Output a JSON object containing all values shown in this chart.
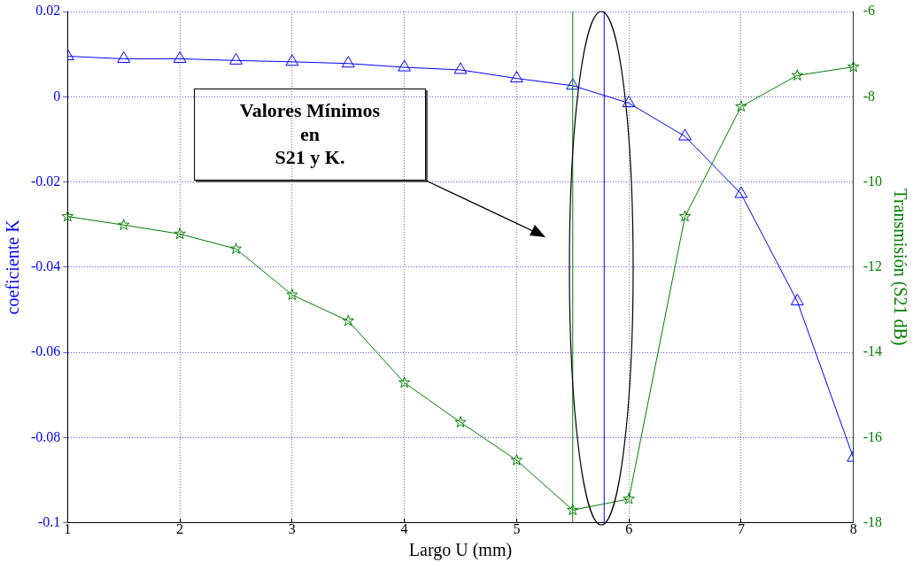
{
  "chart_data": {
    "type": "line",
    "xlabel": "Largo U (mm)",
    "ylabel": "coeficiente K",
    "y2label": "Transmisión (S21 dB)",
    "annotations": [
      "Valores Mínimos\nen\nS21 y K."
    ],
    "x": [
      1,
      1.5,
      2,
      2.5,
      3,
      3.5,
      4,
      4.5,
      5,
      5.5,
      6,
      6.5,
      7,
      7.5,
      8
    ],
    "series": [
      {
        "color": "#0000ff",
        "marker": "triangle",
        "values": [
          0.0095,
          0.0089,
          0.0089,
          0.0085,
          0.0082,
          0.0078,
          0.0069,
          0.0063,
          0.0043,
          0.0026,
          -0.0015,
          -0.0093,
          -0.0228,
          -0.048,
          -0.0847
        ]
      },
      {
        "color": "#008000",
        "marker": "star",
        "axis": "y2",
        "values": [
          -10.81,
          -11.01,
          -11.22,
          -11.57,
          -12.65,
          -13.26,
          -14.71,
          -15.64,
          -16.53,
          -17.7,
          -17.44,
          -10.81,
          -8.23,
          -7.5,
          -7.3
        ]
      }
    ],
    "xlim": [
      1,
      8
    ],
    "xticks": [
      1,
      2,
      3,
      4,
      5,
      6,
      7,
      8
    ],
    "ylim": [
      -0.1,
      0.02
    ],
    "yticks": [
      -0.1,
      -0.08,
      -0.06,
      -0.04,
      -0.02,
      0,
      0.02
    ],
    "y2lim": [
      -18,
      -6
    ],
    "y2ticks": [
      -18,
      -16,
      -14,
      -12,
      -10,
      -8,
      -6
    ],
    "grid": true,
    "ref_lines": [
      {
        "axis": "x",
        "value": 5.5,
        "color": "#008000"
      },
      {
        "axis": "x",
        "value": 5.78,
        "color": "#0000ff"
      }
    ]
  }
}
